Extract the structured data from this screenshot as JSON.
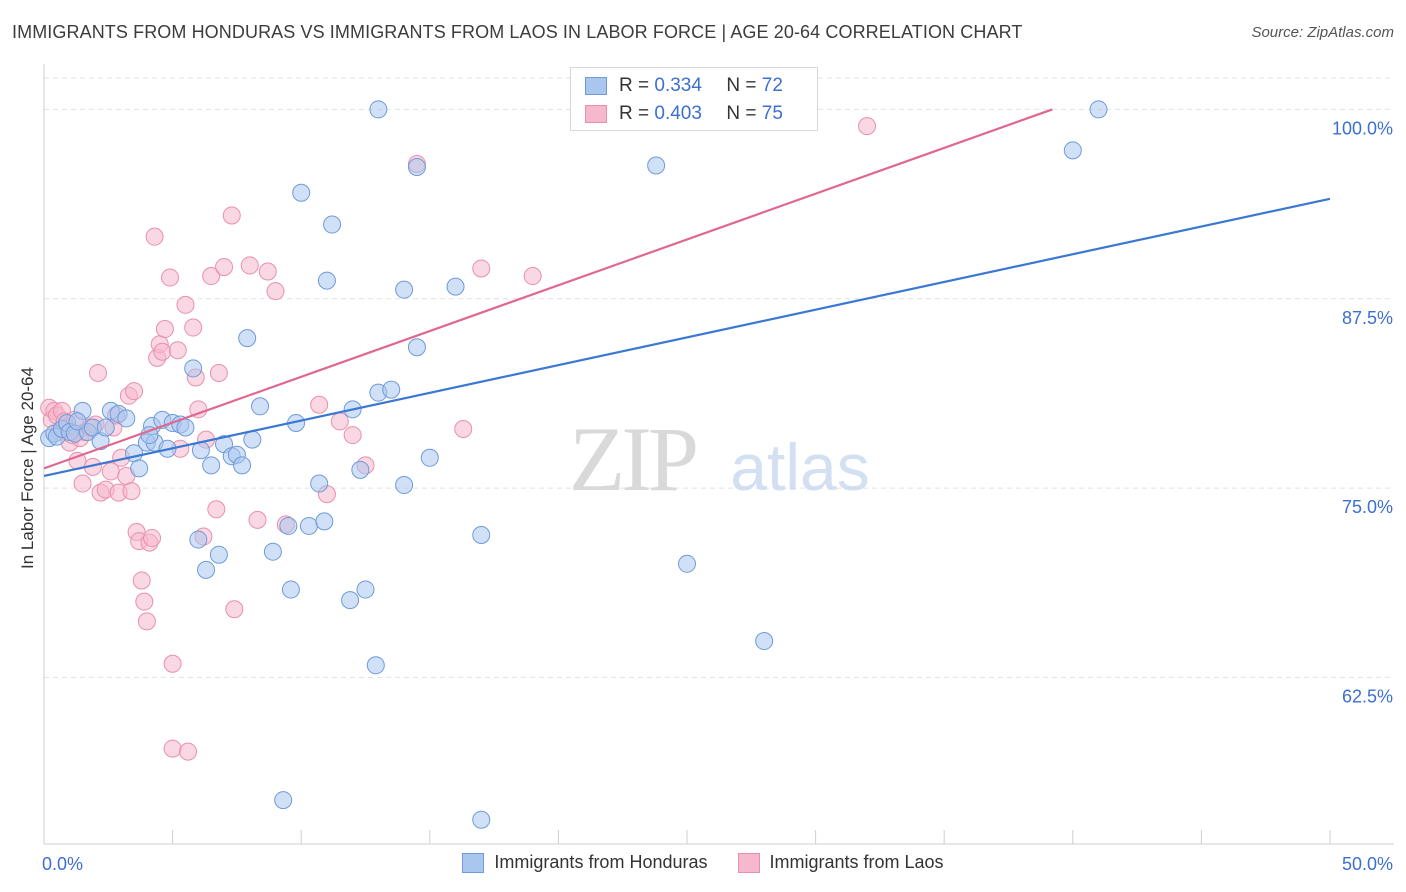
{
  "title": "IMMIGRANTS FROM HONDURAS VS IMMIGRANTS FROM LAOS IN LABOR FORCE | AGE 20-64 CORRELATION CHART",
  "source": "Source: ZipAtlas.com",
  "watermark": {
    "zip": "ZIP",
    "atlas": "atlas"
  },
  "colors": {
    "honduras_fill": "#a9c6ee",
    "honduras_stroke": "#6f9bd9",
    "honduras_line": "#3a78d4",
    "laos_fill": "#f6b8cc",
    "laos_stroke": "#ea8fac",
    "laos_line": "#e0678f",
    "axis_text": "#3d6fd0"
  },
  "legend": {
    "r_label": "R =",
    "n_label": "N =",
    "honduras": {
      "r": "0.334",
      "n": "72"
    },
    "laos": {
      "r": "0.403",
      "n": "75"
    }
  },
  "chart_data": {
    "type": "scatter",
    "title": "IMMIGRANTS FROM HONDURAS VS IMMIGRANTS FROM LAOS IN LABOR FORCE | AGE 20-64 CORRELATION CHART",
    "xlabel": "",
    "ylabel": "In Labor Force | Age 20-64",
    "xlim": [
      0,
      50
    ],
    "ylim": [
      51.5,
      103
    ],
    "x_tick_labels": [
      "0.0%",
      "50.0%"
    ],
    "y_ticks": [
      62.5,
      75.0,
      87.5,
      100.0
    ],
    "y_tick_labels": [
      "62.5%",
      "75.0%",
      "87.5%",
      "100.0%"
    ],
    "grid": true,
    "legend_position": "top-center",
    "series": [
      {
        "name": "Immigrants from Honduras",
        "trend": [
          [
            0,
            75.8
          ],
          [
            50,
            94.1
          ]
        ],
        "points": [
          [
            0.2,
            78.3
          ],
          [
            0.4,
            78.6
          ],
          [
            0.5,
            78.4
          ],
          [
            0.7,
            78.9
          ],
          [
            0.9,
            79.3
          ],
          [
            1.0,
            78.7
          ],
          [
            1.2,
            78.6
          ],
          [
            1.5,
            80.1
          ],
          [
            1.7,
            78.7
          ],
          [
            1.9,
            79.0
          ],
          [
            2.2,
            78.1
          ],
          [
            2.6,
            80.1
          ],
          [
            2.9,
            79.9
          ],
          [
            3.2,
            79.6
          ],
          [
            3.5,
            77.3
          ],
          [
            3.7,
            76.3
          ],
          [
            4.0,
            78.0
          ],
          [
            4.2,
            79.1
          ],
          [
            4.3,
            78.0
          ],
          [
            4.6,
            79.5
          ],
          [
            4.8,
            77.6
          ],
          [
            5.0,
            79.3
          ],
          [
            5.3,
            79.2
          ],
          [
            5.5,
            79.0
          ],
          [
            5.8,
            82.9
          ],
          [
            6.0,
            71.6
          ],
          [
            6.3,
            69.6
          ],
          [
            6.5,
            76.5
          ],
          [
            6.8,
            70.6
          ],
          [
            7.0,
            77.9
          ],
          [
            7.3,
            77.1
          ],
          [
            7.5,
            77.2
          ],
          [
            7.7,
            76.5
          ],
          [
            7.9,
            84.9
          ],
          [
            8.4,
            80.4
          ],
          [
            8.9,
            70.8
          ],
          [
            9.3,
            54.4
          ],
          [
            9.5,
            72.5
          ],
          [
            9.6,
            68.3
          ],
          [
            9.8,
            79.3
          ],
          [
            10.0,
            94.5
          ],
          [
            10.3,
            72.5
          ],
          [
            10.7,
            75.3
          ],
          [
            10.9,
            72.8
          ],
          [
            11.0,
            88.7
          ],
          [
            11.2,
            92.4
          ],
          [
            11.9,
            67.6
          ],
          [
            12.0,
            80.2
          ],
          [
            12.3,
            76.2
          ],
          [
            12.5,
            68.3
          ],
          [
            12.9,
            63.3
          ],
          [
            13.0,
            81.3
          ],
          [
            13.0,
            100.0
          ],
          [
            13.5,
            81.5
          ],
          [
            14.0,
            75.2
          ],
          [
            14.0,
            88.1
          ],
          [
            14.5,
            84.3
          ],
          [
            14.5,
            96.2
          ],
          [
            15.0,
            77.0
          ],
          [
            16.0,
            88.3
          ],
          [
            17.0,
            53.1
          ],
          [
            17.0,
            71.9
          ],
          [
            23.8,
            96.3
          ],
          [
            25.0,
            70.0
          ],
          [
            28.0,
            64.9
          ],
          [
            40.0,
            97.3
          ],
          [
            41.0,
            100.0
          ],
          [
            4.1,
            78.5
          ],
          [
            2.4,
            79.0
          ],
          [
            6.1,
            77.5
          ],
          [
            8.1,
            78.2
          ],
          [
            1.3,
            79.4
          ]
        ]
      },
      {
        "name": "Immigrants from Laos",
        "trend": [
          [
            0,
            76.3
          ],
          [
            39.2,
            100.0
          ]
        ],
        "points": [
          [
            0.2,
            80.3
          ],
          [
            0.3,
            79.5
          ],
          [
            0.4,
            80.1
          ],
          [
            0.5,
            79.8
          ],
          [
            0.6,
            78.7
          ],
          [
            0.7,
            80.1
          ],
          [
            0.8,
            79.4
          ],
          [
            0.9,
            79.0
          ],
          [
            1.0,
            78.0
          ],
          [
            1.2,
            79.5
          ],
          [
            1.3,
            76.8
          ],
          [
            1.4,
            78.3
          ],
          [
            1.5,
            75.3
          ],
          [
            1.6,
            78.7
          ],
          [
            1.8,
            79.0
          ],
          [
            1.9,
            76.4
          ],
          [
            2.0,
            79.2
          ],
          [
            2.1,
            82.6
          ],
          [
            2.2,
            74.7
          ],
          [
            2.4,
            74.9
          ],
          [
            2.6,
            76.1
          ],
          [
            2.7,
            79.0
          ],
          [
            2.8,
            79.8
          ],
          [
            2.9,
            74.7
          ],
          [
            3.0,
            77.0
          ],
          [
            3.2,
            75.8
          ],
          [
            3.3,
            81.1
          ],
          [
            3.4,
            74.8
          ],
          [
            3.5,
            81.4
          ],
          [
            3.6,
            72.1
          ],
          [
            3.7,
            71.5
          ],
          [
            3.8,
            68.9
          ],
          [
            3.9,
            67.5
          ],
          [
            4.0,
            66.2
          ],
          [
            4.1,
            71.4
          ],
          [
            4.2,
            71.7
          ],
          [
            4.3,
            91.6
          ],
          [
            4.4,
            83.6
          ],
          [
            4.5,
            84.5
          ],
          [
            4.6,
            84.0
          ],
          [
            4.7,
            85.5
          ],
          [
            4.9,
            88.9
          ],
          [
            5.0,
            63.4
          ],
          [
            5.0,
            57.8
          ],
          [
            5.2,
            84.1
          ],
          [
            5.3,
            77.6
          ],
          [
            5.5,
            87.1
          ],
          [
            5.6,
            57.6
          ],
          [
            5.8,
            85.6
          ],
          [
            5.9,
            82.3
          ],
          [
            6.0,
            80.2
          ],
          [
            6.2,
            71.8
          ],
          [
            6.3,
            78.2
          ],
          [
            6.5,
            89.0
          ],
          [
            6.7,
            73.6
          ],
          [
            6.8,
            82.6
          ],
          [
            7.0,
            89.6
          ],
          [
            7.3,
            93.0
          ],
          [
            7.4,
            67.0
          ],
          [
            8.0,
            89.7
          ],
          [
            8.3,
            72.9
          ],
          [
            8.7,
            89.3
          ],
          [
            9.0,
            88.0
          ],
          [
            9.4,
            72.6
          ],
          [
            10.7,
            80.5
          ],
          [
            11.0,
            74.6
          ],
          [
            11.5,
            79.4
          ],
          [
            12.0,
            78.5
          ],
          [
            12.5,
            76.5
          ],
          [
            14.5,
            96.4
          ],
          [
            16.3,
            78.9
          ],
          [
            17.0,
            89.5
          ],
          [
            19.0,
            89.0
          ],
          [
            32.0,
            98.9
          ],
          [
            1.1,
            78.5
          ]
        ]
      }
    ]
  },
  "bottom_legend": {
    "honduras": "Immigrants from Honduras",
    "laos": "Immigrants from Laos"
  }
}
